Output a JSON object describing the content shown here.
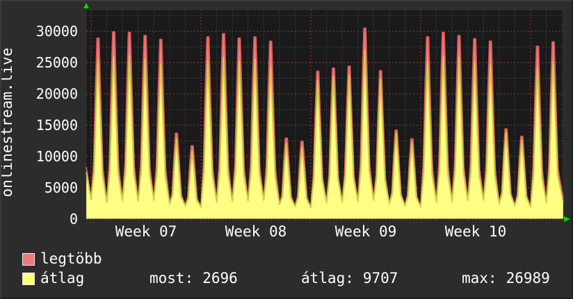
{
  "title_vertical": "onlinestream.live",
  "legend": [
    {
      "label": "legtöbb",
      "color": "#ee7878"
    },
    {
      "label": "átlag",
      "color": "#ffff7a"
    }
  ],
  "stats": [
    {
      "label": "most:",
      "value": "2696"
    },
    {
      "label": "átlag:",
      "value": "9707"
    },
    {
      "label": "max:",
      "value": "26989"
    }
  ],
  "colors": {
    "page_background": "#2c2c2c",
    "plot_background": "#1a1a1a",
    "grid_minor": "#4d4d4d",
    "grid_major": "#a33b3b",
    "text": "#ffffff",
    "arrow": "#00d800"
  },
  "chart_data": {
    "type": "area",
    "title": "onlinestream.live",
    "xlabel": "",
    "ylabel": "",
    "ylim": [
      0,
      33400
    ],
    "grid": "on",
    "legend_position": "bottom-left",
    "y_axis": {
      "ticks": [
        0,
        5000,
        10000,
        15000,
        20000,
        25000,
        30000
      ],
      "minor_step": 2500
    },
    "x_axis": {
      "tick_labels": [
        "Week 07",
        "Week 08",
        "Week 09",
        "Week 10"
      ],
      "days_per_week": 7,
      "weeks_shown": 4,
      "total_days_visible": 30.4
    },
    "series": [
      {
        "name": "legtöbb",
        "key": "max",
        "fill": "#f08484",
        "stroke": "#dd5c5c"
      },
      {
        "name": "átlag",
        "key": "avg",
        "fill": "#ffff85",
        "stroke": "#cfcf4e"
      }
    ],
    "start": {
      "max": 8300,
      "avg": 7500
    },
    "end": {
      "max": 3200,
      "avg": 2696
    },
    "days": [
      {
        "low": 3100,
        "max": 28900,
        "avg": 25300
      },
      {
        "low": 2600,
        "max": 29900,
        "avg": 25900
      },
      {
        "low": 2900,
        "max": 29800,
        "avg": 26100
      },
      {
        "low": 2800,
        "max": 29300,
        "avg": 25500
      },
      {
        "low": 3000,
        "max": 28700,
        "avg": 24800
      },
      {
        "low": 2400,
        "max": 13700,
        "avg": 12800
      },
      {
        "low": 2100,
        "max": 11700,
        "avg": 10800
      },
      {
        "low": 1900,
        "max": 29100,
        "avg": 25300
      },
      {
        "low": 2700,
        "max": 29600,
        "avg": 25800
      },
      {
        "low": 2800,
        "max": 28900,
        "avg": 25300
      },
      {
        "low": 2900,
        "max": 29100,
        "avg": 25500
      },
      {
        "low": 3000,
        "max": 28400,
        "avg": 24200
      },
      {
        "low": 2300,
        "max": 12900,
        "avg": 12000
      },
      {
        "low": 2000,
        "max": 12400,
        "avg": 11500
      },
      {
        "low": 1800,
        "max": 23600,
        "avg": 22200
      },
      {
        "low": 2600,
        "max": 24100,
        "avg": 22800
      },
      {
        "low": 2700,
        "max": 24400,
        "avg": 23000
      },
      {
        "low": 2800,
        "max": 30500,
        "avg": 26989
      },
      {
        "low": 3000,
        "max": 23700,
        "avg": 22400
      },
      {
        "low": 2400,
        "max": 14200,
        "avg": 13700
      },
      {
        "low": 2100,
        "max": 12800,
        "avg": 12200
      },
      {
        "low": 1900,
        "max": 29100,
        "avg": 25300
      },
      {
        "low": 2700,
        "max": 29800,
        "avg": 25900
      },
      {
        "low": 2800,
        "max": 29300,
        "avg": 25800
      },
      {
        "low": 2900,
        "max": 28800,
        "avg": 25000
      },
      {
        "low": 3000,
        "max": 28400,
        "avg": 24800
      },
      {
        "low": 2400,
        "max": 14400,
        "avg": 13900
      },
      {
        "low": 2100,
        "max": 13200,
        "avg": 12600
      },
      {
        "low": 1900,
        "max": 27600,
        "avg": 24200
      },
      {
        "low": 2600,
        "max": 28300,
        "avg": 25100
      }
    ]
  }
}
